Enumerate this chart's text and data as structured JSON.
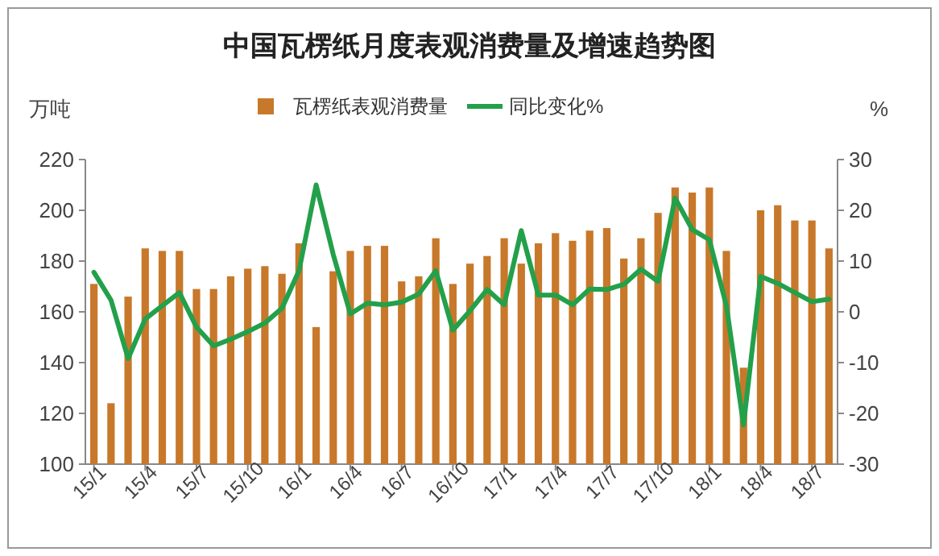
{
  "chart_data": {
    "type": "bar",
    "title": "中国瓦楞纸月度表观消费量及增速趋势图",
    "ylabel": "万吨",
    "y2label": "%",
    "categories": [
      "15/1",
      null,
      null,
      "15/4",
      null,
      null,
      "15/7",
      null,
      null,
      "15/10",
      null,
      null,
      "16/1",
      null,
      null,
      "16/4",
      null,
      null,
      "16/7",
      null,
      null,
      "16/10",
      null,
      null,
      "17/1",
      null,
      null,
      "17/4",
      null,
      null,
      "17/7",
      null,
      null,
      "17/10",
      null,
      null,
      "18/1",
      null,
      null,
      "18/4",
      null,
      null,
      "18/7",
      null
    ],
    "series": [
      {
        "name": "瓦楞纸表观消费量",
        "color": "#c8782a",
        "values": [
          171,
          124,
          166,
          185,
          184,
          184,
          169,
          169,
          174,
          177,
          178,
          175,
          187,
          154,
          176,
          184,
          186,
          186,
          172,
          174,
          189,
          171,
          179,
          182,
          189,
          179,
          187,
          191,
          188,
          192,
          193,
          181,
          189,
          199,
          209,
          207,
          209,
          184,
          138,
          200,
          202,
          196,
          196,
          185
        ]
      },
      {
        "name": "同比变化%",
        "type": "line",
        "axis": "y2",
        "color": "#23a04a",
        "values": [
          7.8,
          2.3,
          -9.2,
          -1.4,
          1.2,
          3.8,
          -3,
          -6.7,
          -5.4,
          -3.9,
          -2.2,
          0.7,
          8.1,
          25,
          11.3,
          -0.4,
          1.7,
          1.4,
          1.9,
          3.5,
          8.1,
          -3.6,
          0.2,
          4.4,
          1.4,
          16,
          3.3,
          3.3,
          1.4,
          4.5,
          4.4,
          5.4,
          8.4,
          6,
          22.4,
          16.2,
          14.2,
          1.2,
          -22.3,
          7,
          5.6,
          3.8,
          2,
          2.5
        ]
      }
    ],
    "ylim": [
      100,
      220
    ],
    "yticks": [
      100,
      120,
      140,
      160,
      180,
      200,
      220
    ],
    "y2lim": [
      -30,
      30
    ],
    "y2ticks": [
      -30,
      -20,
      -10,
      0,
      10,
      20,
      30
    ],
    "legend": "top",
    "grid": false
  }
}
